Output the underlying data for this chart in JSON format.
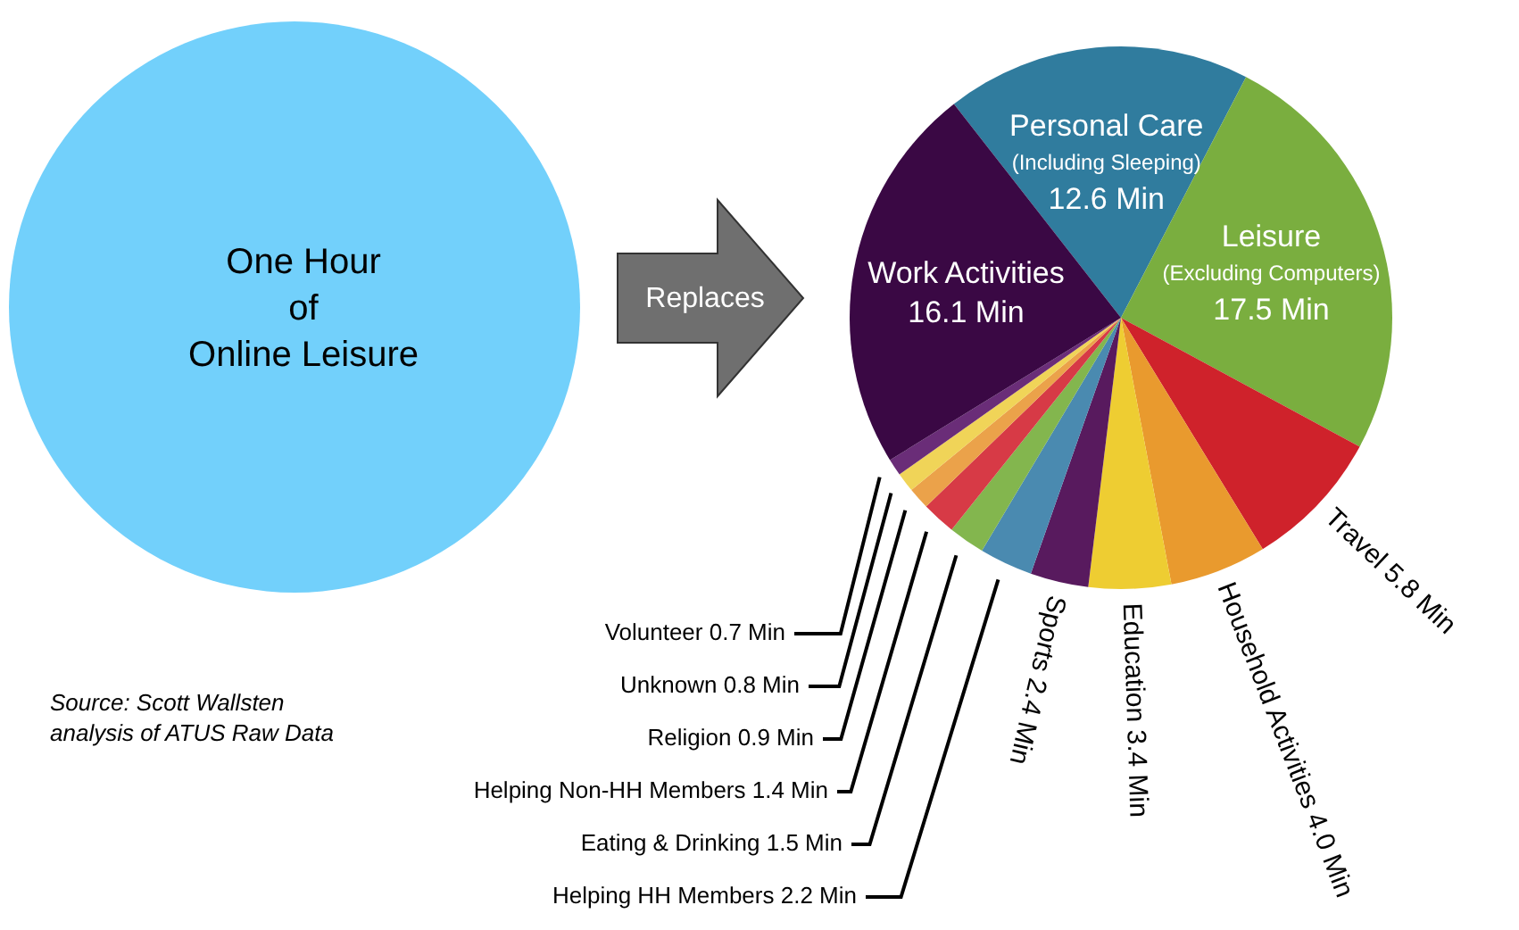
{
  "chart_data": {
    "type": "pie",
    "categories": [
      "Personal Care (Including Sleeping)",
      "Leisure (Excluding Computers)",
      "Travel",
      "Household Activities",
      "Education",
      "Sports",
      "Helping HH Members",
      "Eating & Drinking",
      "Helping Non-HH Members",
      "Religion",
      "Unknown",
      "Volunteer",
      "Work Activities"
    ],
    "values": [
      12.6,
      17.5,
      5.8,
      4.0,
      3.4,
      2.4,
      2.2,
      1.5,
      1.4,
      0.9,
      0.8,
      0.7,
      16.1
    ],
    "value_labels": [
      "12.6 Min",
      "17.5 Min",
      "5.8 Min",
      "4.0 Min",
      "3.4 Min",
      "2.4 Min",
      "2.2 Min",
      "1.5 Min",
      "1.4 Min",
      "0.9 Min",
      "0.8 Min",
      "0.7 Min",
      "16.1 Min"
    ],
    "colors": [
      "#307c9e",
      "#7aae3f",
      "#cf222b",
      "#e99a2e",
      "#eecd32",
      "#581a5e",
      "#4a8ab0",
      "#83b64e",
      "#d73a46",
      "#eba24a",
      "#f0d458",
      "#6a2d78",
      "#3a0844"
    ],
    "annotations": [
      "One Hour\nof\nOnline Leisure",
      "Replaces",
      "Source: Scott Wallsten\nanalysis of ATUS Raw Data"
    ]
  }
}
